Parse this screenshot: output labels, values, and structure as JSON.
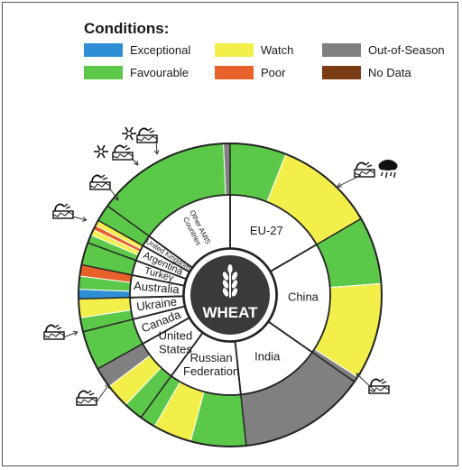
{
  "legend": {
    "title": "Conditions:",
    "items": [
      {
        "key": "exceptional",
        "label": "Exceptional",
        "color": "#2f8fd6"
      },
      {
        "key": "favourable",
        "label": "Favourable",
        "color": "#5cc84a"
      },
      {
        "key": "watch",
        "label": "Watch",
        "color": "#f2ee4a"
      },
      {
        "key": "poor",
        "label": "Poor",
        "color": "#e8602a"
      },
      {
        "key": "out_of_season",
        "label": "Out-of-Season",
        "color": "#808080"
      },
      {
        "key": "no_data",
        "label": "No Data",
        "color": "#7a3a12"
      }
    ]
  },
  "center_label": "WHEAT",
  "chart_data": {
    "type": "sunburst",
    "title": "",
    "inner_ring": [
      {
        "label": "EU-27",
        "share": 0.166
      },
      {
        "label": "China",
        "share": 0.181
      },
      {
        "label": "India",
        "share": 0.136
      },
      {
        "label": "Russian Federation",
        "share": 0.117
      },
      {
        "label": "United States",
        "share": 0.069
      },
      {
        "label": "Canada",
        "share": 0.042
      },
      {
        "label": "Ukraine",
        "share": 0.035
      },
      {
        "label": "Australia",
        "share": 0.036
      },
      {
        "label": "Turkey",
        "share": 0.024
      },
      {
        "label": "Argentina",
        "share": 0.026
      },
      {
        "label": "United Kingdom",
        "share": 0.018
      },
      {
        "label": "Other AMIS Countries",
        "share": 0.15
      }
    ],
    "outer_ring": [
      {
        "country": "EU-27",
        "condition": "favourable",
        "share": 0.06
      },
      {
        "country": "EU-27",
        "condition": "watch",
        "share": 0.106
      },
      {
        "country": "China",
        "condition": "favourable",
        "share": 0.072
      },
      {
        "country": "China",
        "condition": "watch",
        "share": 0.103
      },
      {
        "country": "China",
        "condition": "out_of_season",
        "share": 0.006
      },
      {
        "country": "India",
        "condition": "out_of_season",
        "share": 0.136
      },
      {
        "country": "Russian Federation",
        "condition": "favourable",
        "share": 0.059
      },
      {
        "country": "Russian Federation",
        "condition": "watch",
        "share": 0.041
      },
      {
        "country": "Russian Federation",
        "condition": "favourable",
        "share": 0.017
      },
      {
        "country": "United States",
        "condition": "favourable",
        "share": 0.021
      },
      {
        "country": "United States",
        "condition": "watch",
        "share": 0.026
      },
      {
        "country": "United States",
        "condition": "out_of_season",
        "share": 0.022
      },
      {
        "country": "Canada",
        "condition": "favourable",
        "share": 0.042
      },
      {
        "country": "Ukraine",
        "condition": "favourable",
        "share": 0.015
      },
      {
        "country": "Ukraine",
        "condition": "watch",
        "share": 0.02
      },
      {
        "country": "Australia",
        "condition": "exceptional",
        "share": 0.01
      },
      {
        "country": "Australia",
        "condition": "favourable",
        "share": 0.014
      },
      {
        "country": "Australia",
        "condition": "poor",
        "share": 0.012
      },
      {
        "country": "Turkey",
        "condition": "favourable",
        "share": 0.024
      },
      {
        "country": "Argentina",
        "condition": "favourable",
        "share": 0.009
      },
      {
        "country": "Argentina",
        "condition": "watch",
        "share": 0.006
      },
      {
        "country": "Argentina",
        "condition": "poor",
        "share": 0.005
      },
      {
        "country": "Argentina",
        "condition": "watch",
        "share": 0.006
      },
      {
        "country": "United Kingdom",
        "condition": "favourable",
        "share": 0.018
      },
      {
        "country": "Other AMIS Countries",
        "condition": "favourable",
        "share": 0.143
      },
      {
        "country": "Other AMIS Countries",
        "condition": "out_of_season",
        "share": 0.007
      }
    ],
    "markers": [
      {
        "icon": "drought-icon",
        "country": "EU-27"
      },
      {
        "icon": "rain-cloud-icon",
        "country": "EU-27"
      },
      {
        "icon": "drought-icon",
        "country": "China"
      },
      {
        "icon": "drought-icon",
        "country": "Russian Federation"
      },
      {
        "icon": "drought-icon",
        "country": "United States"
      },
      {
        "icon": "drought-icon",
        "country": "Ukraine"
      },
      {
        "icon": "drought-icon",
        "country": "Australia"
      },
      {
        "icon": "frost-icon",
        "country": "Turkey"
      },
      {
        "icon": "drought-icon",
        "country": "Turkey"
      },
      {
        "icon": "frost-icon",
        "country": "Argentina"
      },
      {
        "icon": "drought-icon",
        "country": "Argentina"
      }
    ]
  }
}
